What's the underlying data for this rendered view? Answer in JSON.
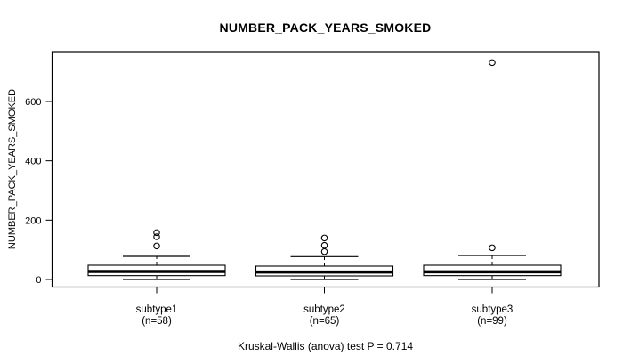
{
  "figure": {
    "title": "NUMBER_PACK_YEARS_SMOKED",
    "caption": "Kruskal-Wallis (anova) test P = 0.714"
  },
  "chart_data": {
    "type": "boxplot",
    "title": "NUMBER_PACK_YEARS_SMOKED",
    "xlabel": "",
    "ylabel": "NUMBER_PACK_YEARS_SMOKED",
    "annotation": "Kruskal-Wallis (anova) test P = 0.714",
    "legend_position": "none",
    "y_axis": {
      "ticks": [
        0,
        200,
        400,
        600
      ],
      "range": [
        -25,
        768
      ],
      "grid": false
    },
    "groups": [
      {
        "label": "subtype1",
        "sublabel": "(n=58)",
        "n": 58,
        "whisker_low": 0,
        "q1": 13,
        "median": 27,
        "q3": 48,
        "whisker_high": 78,
        "outliers": [
          113,
          144,
          158
        ]
      },
      {
        "label": "subtype2",
        "sublabel": "(n=65)",
        "n": 65,
        "whisker_low": 0,
        "q1": 12,
        "median": 25,
        "q3": 45,
        "whisker_high": 77,
        "outliers": [
          94,
          115,
          140
        ]
      },
      {
        "label": "subtype3",
        "sublabel": "(n=99)",
        "n": 99,
        "whisker_low": 0,
        "q1": 13,
        "median": 26,
        "q3": 48,
        "whisker_high": 81,
        "outliers": [
          107,
          731
        ]
      }
    ],
    "colors": {
      "stroke": "#000000",
      "box_fill": "#ffffff",
      "background": "#ffffff"
    }
  }
}
